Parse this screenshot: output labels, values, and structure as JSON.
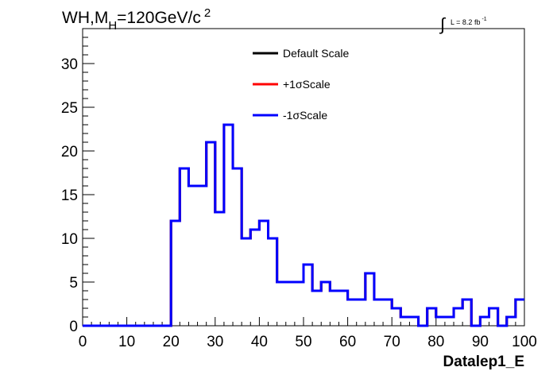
{
  "header": {
    "title_main": "WH,M",
    "title_sub": "H",
    "title_rest": "=120GeV/c",
    "title_sup": "2",
    "lumi_prefix": "L = 8.2 fb",
    "lumi_sup": "-1"
  },
  "chart_data": {
    "type": "line",
    "xlabel": "Datalep1_E",
    "ylabel": "",
    "xlim": [
      0,
      100
    ],
    "ylim": [
      0,
      34
    ],
    "x_ticks": [
      "0",
      "10",
      "20",
      "30",
      "40",
      "50",
      "60",
      "70",
      "80",
      "90",
      "100"
    ],
    "y_ticks": [
      "0",
      "5",
      "10",
      "15",
      "20",
      "25",
      "30"
    ],
    "grid": false,
    "legend_position": "top-center",
    "bin_edges": [
      0,
      2,
      4,
      6,
      8,
      10,
      12,
      14,
      16,
      18,
      20,
      22,
      24,
      26,
      28,
      30,
      32,
      34,
      36,
      38,
      40,
      42,
      44,
      46,
      48,
      50,
      52,
      54,
      56,
      58,
      60,
      62,
      64,
      66,
      68,
      70,
      72,
      74,
      76,
      78,
      80,
      82,
      84,
      86,
      88,
      90,
      92,
      94,
      96,
      98,
      100
    ],
    "series": [
      {
        "name": "Default Scale",
        "color": "#000000",
        "values": [
          0,
          0,
          0,
          0,
          0,
          0,
          0,
          0,
          0,
          0,
          12,
          18,
          16,
          16,
          21,
          13,
          23,
          18,
          10,
          11,
          12,
          10,
          5,
          5,
          5,
          7,
          4,
          5,
          4,
          4,
          3,
          3,
          6,
          3,
          3,
          2,
          1,
          1,
          0,
          2,
          1,
          1,
          2,
          3,
          0,
          1,
          2,
          0,
          1,
          3
        ]
      },
      {
        "name": "+1σScale",
        "color": "#ff0000",
        "values": [
          0,
          0,
          0,
          0,
          0,
          0,
          0,
          0,
          0,
          0,
          12,
          18,
          16,
          16,
          21,
          13,
          23,
          18,
          10,
          11,
          12,
          10,
          5,
          5,
          5,
          7,
          4,
          5,
          4,
          4,
          3,
          3,
          6,
          3,
          3,
          2,
          1,
          1,
          0,
          2,
          1,
          1,
          2,
          3,
          0,
          1,
          2,
          0,
          1,
          3
        ]
      },
      {
        "name": "-1σScale",
        "color": "#0000ff",
        "values": [
          0,
          0,
          0,
          0,
          0,
          0,
          0,
          0,
          0,
          0,
          12,
          18,
          16,
          16,
          21,
          13,
          23,
          18,
          10,
          11,
          12,
          10,
          5,
          5,
          5,
          7,
          4,
          5,
          4,
          4,
          3,
          3,
          6,
          3,
          3,
          2,
          1,
          1,
          0,
          2,
          1,
          1,
          2,
          3,
          0,
          1,
          2,
          0,
          1,
          3
        ]
      }
    ]
  }
}
